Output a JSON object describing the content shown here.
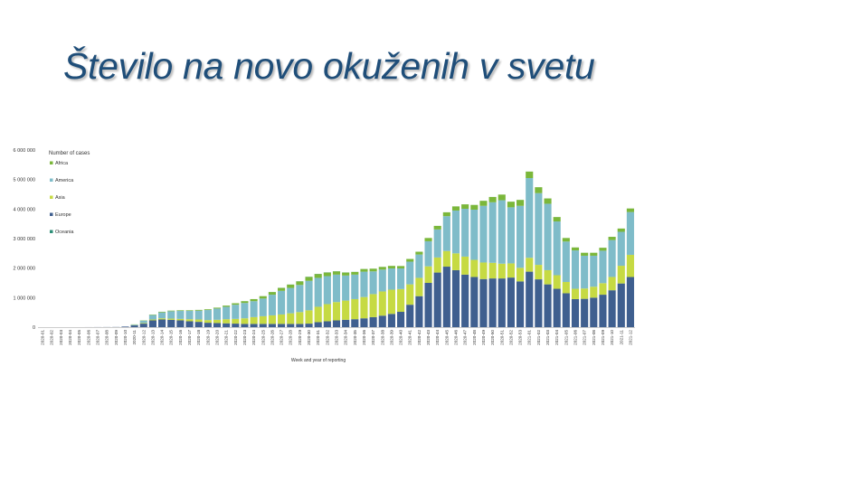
{
  "title": "Število na novo okuženih v svetu",
  "chart_data": {
    "type": "bar",
    "stacked": true,
    "xlabel": "Week and year of reporting",
    "ylabel": "",
    "ylim": [
      0,
      6000000
    ],
    "yticks": [
      0,
      1000000,
      2000000,
      3000000,
      4000000,
      5000000,
      6000000
    ],
    "ytick_labels": [
      "0",
      "1 000 000",
      "2 000 000",
      "3 000 000",
      "4 000 000",
      "5 000 000",
      "6 000 000"
    ],
    "legend": {
      "title": "Number of cases",
      "position": "top-left"
    },
    "grid": false,
    "categories": [
      "2020-01",
      "2020-02",
      "2020-03",
      "2020-04",
      "2020-05",
      "2020-06",
      "2020-07",
      "2020-08",
      "2020-09",
      "2020-10",
      "2020-11",
      "2020-12",
      "2020-13",
      "2020-14",
      "2020-15",
      "2020-16",
      "2020-17",
      "2020-18",
      "2020-19",
      "2020-20",
      "2020-21",
      "2020-22",
      "2020-23",
      "2020-24",
      "2020-25",
      "2020-26",
      "2020-27",
      "2020-28",
      "2020-29",
      "2020-30",
      "2020-31",
      "2020-32",
      "2020-33",
      "2020-34",
      "2020-35",
      "2020-36",
      "2020-37",
      "2020-38",
      "2020-39",
      "2020-40",
      "2020-41",
      "2020-42",
      "2020-43",
      "2020-44",
      "2020-45",
      "2020-46",
      "2020-47",
      "2020-48",
      "2020-49",
      "2020-50",
      "2020-51",
      "2020-52",
      "2020-53",
      "2021-01",
      "2021-02",
      "2021-03",
      "2021-04",
      "2021-05",
      "2021-06",
      "2021-07",
      "2021-08",
      "2021-09",
      "2021-10",
      "2021-11",
      "2021-12"
    ],
    "tick_labels": [
      "2020-01",
      "2020-02",
      "2020-03",
      "2020-04",
      "2020-05",
      "2020-06",
      "2020-07",
      "2020-08",
      "2020-09",
      "2020-10",
      "2020-11",
      "2020-12",
      "2020-13",
      "2020-14",
      "2020-15",
      "2020-16",
      "2020-17",
      "2020-18",
      "2020-19",
      "2020-20",
      "2020-21",
      "2020-22",
      "2020-23",
      "2020-24",
      "2020-25",
      "2020-26",
      "2020-27",
      "2020-28",
      "2020-29",
      "2020-30",
      "2020-31",
      "2020-32",
      "2020-33",
      "2020-34",
      "2020-35",
      "2020-36",
      "2020-37",
      "2020-38",
      "2020-39",
      "2020-40",
      "2020-41",
      "2020-42",
      "2020-43",
      "2020-44",
      "2020-45",
      "2020-46",
      "2020-47",
      "2020-48",
      "2020-49",
      "2020-50",
      "2020-51",
      "2020-52",
      "2020-53",
      "2021-01",
      "2021-02",
      "2021-03",
      "2021-04",
      "2021-05",
      "2021-06",
      "2021-07",
      "2021-08",
      "2021-09",
      "2021-10",
      "2021-11",
      "2021-12"
    ],
    "series": [
      {
        "name": "Europe",
        "color": "#3f5f8f",
        "values": [
          0,
          0,
          0,
          0,
          0,
          1000,
          2000,
          3000,
          5000,
          20000,
          60000,
          120000,
          230000,
          260000,
          250000,
          230000,
          200000,
          180000,
          150000,
          140000,
          130000,
          120000,
          110000,
          110000,
          110000,
          110000,
          110000,
          110000,
          110000,
          120000,
          170000,
          200000,
          230000,
          250000,
          270000,
          300000,
          340000,
          390000,
          450000,
          520000,
          760000,
          1050000,
          1500000,
          1850000,
          2050000,
          1930000,
          1780000,
          1700000,
          1630000,
          1650000,
          1650000,
          1680000,
          1550000,
          1880000,
          1620000,
          1450000,
          1300000,
          1150000,
          950000,
          960000,
          1000000,
          1100000,
          1250000,
          1480000,
          1700000
        ]
      },
      {
        "name": "Asia",
        "color": "#c6da43",
        "values": [
          0,
          0,
          0,
          0,
          0,
          0,
          0,
          0,
          0,
          0,
          10000,
          20000,
          30000,
          40000,
          40000,
          50000,
          70000,
          80000,
          90000,
          110000,
          140000,
          160000,
          190000,
          230000,
          260000,
          290000,
          320000,
          360000,
          400000,
          450000,
          520000,
          580000,
          620000,
          650000,
          680000,
          720000,
          780000,
          820000,
          820000,
          770000,
          690000,
          620000,
          560000,
          510000,
          530000,
          570000,
          610000,
          580000,
          560000,
          530000,
          500000,
          480000,
          460000,
          470000,
          490000,
          480000,
          460000,
          380000,
          350000,
          350000,
          370000,
          390000,
          450000,
          600000,
          750000
        ]
      },
      {
        "name": "America",
        "color": "#7fbcc9",
        "values": [
          0,
          0,
          0,
          0,
          0,
          0,
          0,
          0,
          0,
          0,
          20000,
          80000,
          150000,
          200000,
          250000,
          270000,
          280000,
          300000,
          340000,
          380000,
          420000,
          480000,
          520000,
          540000,
          600000,
          700000,
          800000,
          860000,
          920000,
          1000000,
          980000,
          950000,
          930000,
          850000,
          830000,
          860000,
          770000,
          740000,
          720000,
          700000,
          770000,
          790000,
          850000,
          950000,
          1180000,
          1450000,
          1620000,
          1700000,
          1920000,
          2050000,
          2150000,
          1900000,
          2100000,
          2700000,
          2430000,
          2250000,
          1820000,
          1370000,
          1300000,
          1110000,
          1050000,
          1100000,
          1250000,
          1150000,
          1450000
        ]
      },
      {
        "name": "Africa",
        "color": "#7bb73a",
        "values": [
          0,
          0,
          0,
          0,
          0,
          0,
          0,
          0,
          0,
          0,
          5000,
          10000,
          15000,
          20000,
          20000,
          20000,
          20000,
          25000,
          25000,
          30000,
          40000,
          50000,
          60000,
          70000,
          80000,
          90000,
          100000,
          110000,
          120000,
          130000,
          130000,
          120000,
          110000,
          100000,
          90000,
          90000,
          90000,
          90000,
          85000,
          80000,
          90000,
          95000,
          110000,
          120000,
          130000,
          140000,
          150000,
          160000,
          170000,
          180000,
          190000,
          190000,
          200000,
          220000,
          200000,
          180000,
          150000,
          120000,
          100000,
          100000,
          100000,
          100000,
          110000,
          110000,
          120000
        ]
      },
      {
        "name": "Oceania",
        "color": "#2f8f78",
        "values": [
          0,
          0,
          0,
          0,
          0,
          0,
          0,
          0,
          0,
          0,
          0,
          0,
          1000,
          2000,
          1000,
          1000,
          1000,
          500,
          500,
          500,
          500,
          500,
          500,
          500,
          1000,
          2000,
          3000,
          4000,
          5000,
          6000,
          6000,
          6000,
          5000,
          4000,
          3000,
          2000,
          2000,
          2000,
          1000,
          1000,
          1000,
          1000,
          1000,
          1000,
          1000,
          1000,
          1000,
          1000,
          1000,
          1000,
          1000,
          1000,
          1000,
          1000,
          1000,
          1000,
          1000,
          1000,
          1000,
          1000,
          1000,
          1000,
          1000,
          1000,
          1000
        ]
      }
    ],
    "legend_order": [
      "Africa",
      "America",
      "Asia",
      "Europe",
      "Oceania"
    ]
  }
}
